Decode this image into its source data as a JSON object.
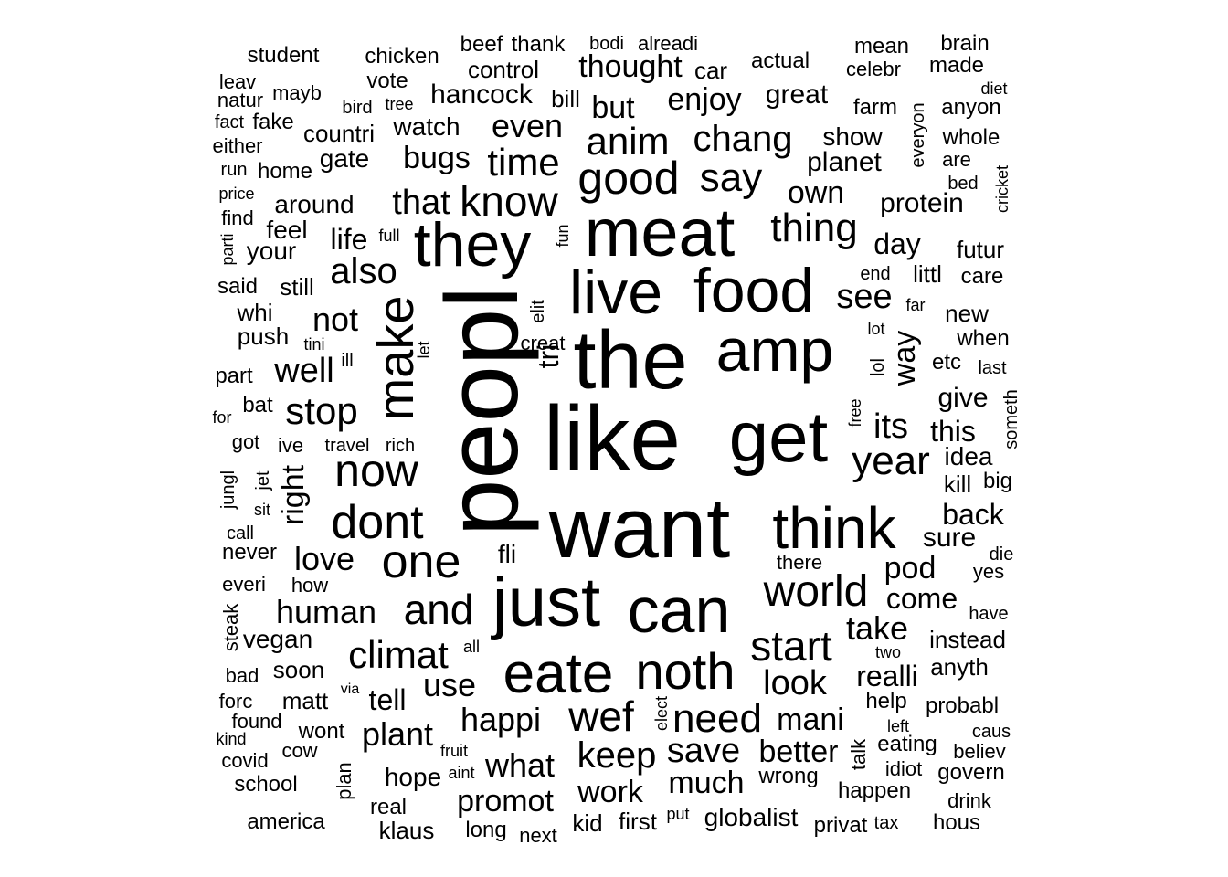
{
  "words": [
    "peopl",
    "like",
    "want",
    "the",
    "meat",
    "get",
    "just",
    "can",
    "they",
    "live",
    "food",
    "amp",
    "eate",
    "think",
    "make",
    "noth",
    "one",
    "dont",
    "good",
    "world",
    "now",
    "know",
    "start",
    "wef",
    "and",
    "human",
    "climat",
    "say",
    "year",
    "time",
    "need",
    "anim",
    "chang",
    "keep",
    "thing",
    "look",
    "also",
    "stop",
    "save",
    "well",
    "its",
    "see",
    "love",
    "happi",
    "way",
    "take",
    "realli",
    "even",
    "much",
    "promot",
    "work",
    "what",
    "plant",
    "use",
    "tell",
    "right",
    "not",
    "better",
    "mani",
    "pod",
    "back",
    "enjoy",
    "hancock",
    "that",
    "bugs",
    "great",
    "thought",
    "own",
    "planet",
    "come",
    "life",
    "but",
    "show",
    "protein",
    "give",
    "this",
    "day",
    "sure",
    "idea",
    "instead",
    "watch",
    "around",
    "gate",
    "fli",
    "matt",
    "soon",
    "vegan",
    "probabl",
    "hope",
    "globalist",
    "control",
    "chicken",
    "student",
    "vote",
    "actual",
    "mean",
    "brain",
    "made",
    "car",
    "thank",
    "beef",
    "alreadi",
    "bodi",
    "bill",
    "countri",
    "tri",
    "push",
    "whi",
    "still",
    "said",
    "feel",
    "your",
    "futur",
    "care",
    "littl",
    "new",
    "when",
    "etc",
    "kill",
    "big",
    "anyth",
    "wrong",
    "first",
    "kid",
    "next",
    "long",
    "klaus",
    "real",
    "america",
    "school",
    "covid",
    "cow",
    "wont",
    "eating",
    "happen",
    "govern",
    "believ",
    "help",
    "idiot",
    "drink",
    "hous",
    "privat",
    "tax",
    "part",
    "home",
    "fake",
    "fact",
    "either",
    "run",
    "mayb",
    "natur",
    "leav",
    "diet",
    "anyon",
    "whole",
    "are",
    "everyon",
    "farm",
    "celebr",
    "crick­et",
    "bed",
    "price",
    "find",
    "parti",
    "full",
    "fun",
    "elit",
    "let",
    "creat",
    "tini",
    "ill",
    "lot",
    "end",
    "far",
    "lol",
    "last",
    "free",
    "someth",
    "never",
    "call",
    "sit",
    "jungl",
    "got",
    "ive",
    "travel",
    "rich",
    "jet",
    "for",
    "bat",
    "everi",
    "how",
    "steak",
    "bad",
    "forc",
    "found",
    "kind",
    "plan",
    "aint",
    "fruit",
    "elect",
    "put",
    "left",
    "talk",
    "two",
    "all",
    "via",
    "there",
    "die",
    "yes",
    "have",
    "caus",
    "tree",
    "bird"
  ],
  "word_color": "#000000"
}
